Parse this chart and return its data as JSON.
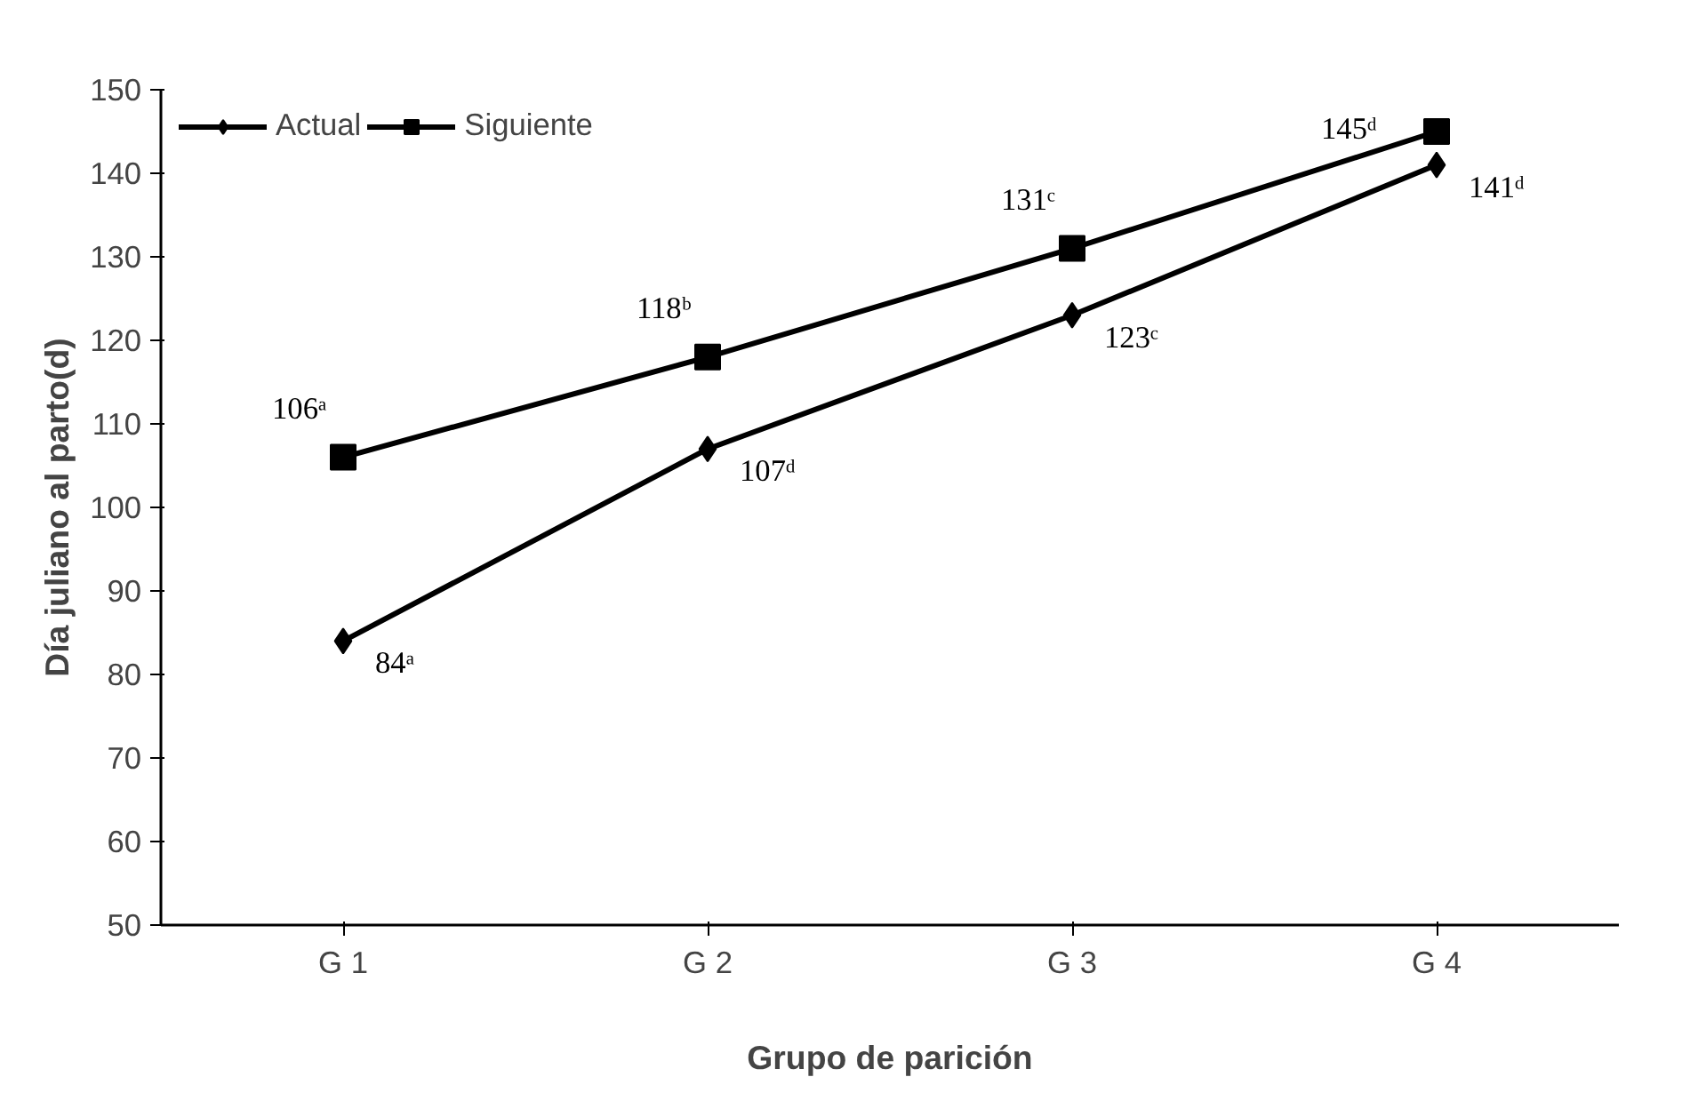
{
  "chart_data": {
    "type": "line",
    "xlabel": "Grupo de parición",
    "ylabel": "Día juliano al parto(d)",
    "categories": [
      "G 1",
      "G 2",
      "G 3",
      "G 4"
    ],
    "series": [
      {
        "name": "Actual",
        "color": "#000000",
        "marker": "diamond",
        "values": [
          84,
          107,
          123,
          141
        ],
        "value_labels": [
          "84ᵃ",
          "107ᵈ",
          "123ᶜ",
          "141ᵈ"
        ]
      },
      {
        "name": "Siguiente",
        "color": "#000000",
        "marker": "square",
        "values": [
          106,
          118,
          131,
          145
        ],
        "value_labels": [
          "106ᵃ",
          "118ᵇ",
          "131ᶜ",
          "145ᵈ"
        ]
      }
    ],
    "ylim": [
      50,
      150
    ],
    "yticks": [
      50,
      60,
      70,
      80,
      90,
      100,
      110,
      120,
      130,
      140,
      150
    ],
    "grid": false,
    "legend": "top left",
    "line_style": "solid"
  }
}
